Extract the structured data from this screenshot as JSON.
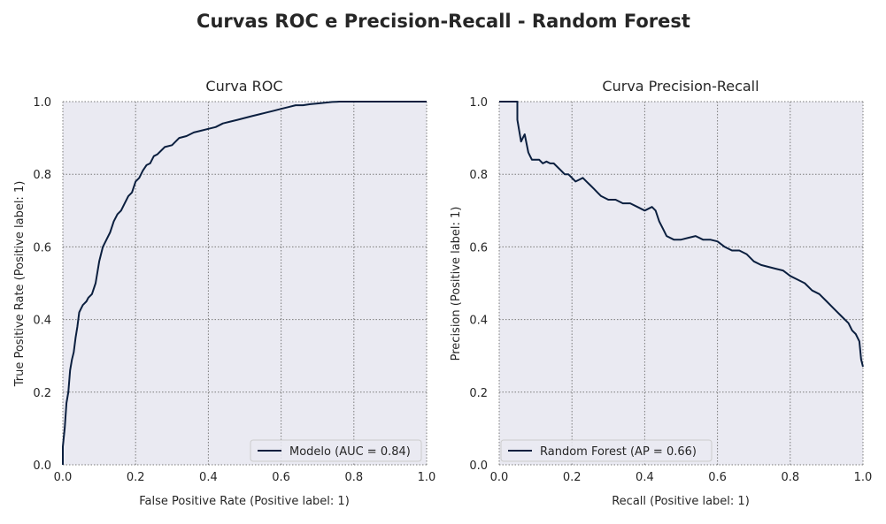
{
  "figure_title": "Curvas ROC e Precision-Recall - Random Forest",
  "colors": {
    "plot_bg": "#eaeaf2",
    "grid": "#7a7a7a",
    "line": "#0b1f3f",
    "text": "#262626"
  },
  "chart_data": [
    {
      "type": "line",
      "title": "Curva ROC",
      "xlabel": "False Positive Rate (Positive label: 1)",
      "ylabel": "True Positive Rate (Positive label: 1)",
      "xlim": [
        0,
        1
      ],
      "ylim": [
        0,
        1
      ],
      "xticks": [
        "0.0",
        "0.2",
        "0.4",
        "0.6",
        "0.8",
        "1.0"
      ],
      "yticks": [
        "0.0",
        "0.2",
        "0.4",
        "0.6",
        "0.8",
        "1.0"
      ],
      "grid": true,
      "legend_position": "lower-right",
      "series": [
        {
          "name": "Modelo (AUC = 0.84)",
          "x": [
            0.0,
            0.0,
            0.005,
            0.01,
            0.015,
            0.02,
            0.025,
            0.03,
            0.035,
            0.04,
            0.045,
            0.05,
            0.055,
            0.06,
            0.065,
            0.07,
            0.08,
            0.09,
            0.1,
            0.11,
            0.12,
            0.13,
            0.14,
            0.15,
            0.16,
            0.17,
            0.18,
            0.19,
            0.2,
            0.21,
            0.22,
            0.23,
            0.24,
            0.25,
            0.26,
            0.27,
            0.28,
            0.3,
            0.32,
            0.34,
            0.36,
            0.38,
            0.4,
            0.42,
            0.44,
            0.46,
            0.48,
            0.5,
            0.52,
            0.54,
            0.56,
            0.58,
            0.6,
            0.62,
            0.64,
            0.66,
            0.68,
            0.7,
            0.72,
            0.74,
            0.76,
            0.8,
            0.85,
            0.9,
            0.92,
            0.95,
            1.0
          ],
          "y": [
            0.0,
            0.05,
            0.1,
            0.17,
            0.2,
            0.26,
            0.29,
            0.31,
            0.35,
            0.38,
            0.42,
            0.43,
            0.44,
            0.445,
            0.45,
            0.46,
            0.47,
            0.5,
            0.56,
            0.6,
            0.62,
            0.64,
            0.67,
            0.69,
            0.7,
            0.72,
            0.74,
            0.75,
            0.78,
            0.79,
            0.81,
            0.825,
            0.83,
            0.85,
            0.855,
            0.865,
            0.875,
            0.88,
            0.9,
            0.905,
            0.915,
            0.92,
            0.925,
            0.93,
            0.94,
            0.945,
            0.95,
            0.955,
            0.96,
            0.965,
            0.97,
            0.975,
            0.98,
            0.985,
            0.99,
            0.99,
            0.993,
            0.995,
            0.997,
            0.999,
            1.0,
            1.0,
            1.0,
            1.0,
            1.0,
            1.0,
            1.0
          ]
        }
      ]
    },
    {
      "type": "line",
      "title": "Curva Precision-Recall",
      "xlabel": "Recall (Positive label: 1)",
      "ylabel": "Precision (Positive label: 1)",
      "xlim": [
        0,
        1
      ],
      "ylim": [
        0,
        1
      ],
      "xticks": [
        "0.0",
        "0.2",
        "0.4",
        "0.6",
        "0.8",
        "1.0"
      ],
      "yticks": [
        "0.0",
        "0.2",
        "0.4",
        "0.6",
        "0.8",
        "1.0"
      ],
      "grid": true,
      "legend_position": "lower-left",
      "series": [
        {
          "name": "Random Forest (AP = 0.66)",
          "x": [
            0.0,
            0.05,
            0.05,
            0.055,
            0.06,
            0.065,
            0.07,
            0.08,
            0.085,
            0.09,
            0.1,
            0.11,
            0.12,
            0.13,
            0.14,
            0.15,
            0.16,
            0.17,
            0.18,
            0.19,
            0.2,
            0.21,
            0.22,
            0.23,
            0.24,
            0.25,
            0.26,
            0.27,
            0.28,
            0.3,
            0.32,
            0.34,
            0.36,
            0.38,
            0.4,
            0.42,
            0.43,
            0.44,
            0.45,
            0.46,
            0.48,
            0.5,
            0.52,
            0.54,
            0.56,
            0.58,
            0.6,
            0.62,
            0.64,
            0.66,
            0.68,
            0.7,
            0.72,
            0.74,
            0.76,
            0.78,
            0.8,
            0.82,
            0.84,
            0.86,
            0.88,
            0.9,
            0.92,
            0.94,
            0.96,
            0.97,
            0.98,
            0.99,
            0.995,
            1.0
          ],
          "y": [
            1.0,
            1.0,
            0.95,
            0.92,
            0.89,
            0.9,
            0.91,
            0.86,
            0.85,
            0.84,
            0.84,
            0.84,
            0.83,
            0.835,
            0.83,
            0.83,
            0.82,
            0.81,
            0.8,
            0.8,
            0.79,
            0.78,
            0.785,
            0.79,
            0.78,
            0.77,
            0.76,
            0.75,
            0.74,
            0.73,
            0.73,
            0.72,
            0.72,
            0.71,
            0.7,
            0.71,
            0.7,
            0.67,
            0.65,
            0.63,
            0.62,
            0.62,
            0.625,
            0.63,
            0.62,
            0.62,
            0.615,
            0.6,
            0.59,
            0.59,
            0.58,
            0.56,
            0.55,
            0.545,
            0.54,
            0.535,
            0.52,
            0.51,
            0.5,
            0.48,
            0.47,
            0.45,
            0.43,
            0.41,
            0.39,
            0.37,
            0.36,
            0.34,
            0.29,
            0.27
          ]
        }
      ]
    }
  ]
}
